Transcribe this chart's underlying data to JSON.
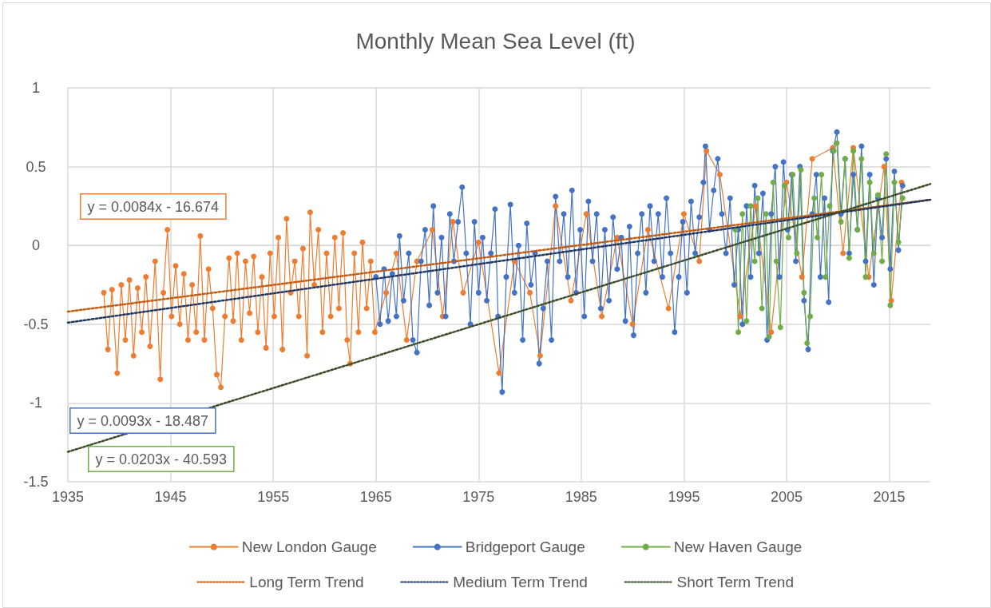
{
  "chart_data": {
    "type": "line",
    "title": "Monthly Mean Sea Level (ft)",
    "xlim": [
      1935,
      2019
    ],
    "xticks": [
      1935,
      1945,
      1955,
      1965,
      1975,
      1985,
      1995,
      2005,
      2015
    ],
    "ylim": [
      -1.5,
      1
    ],
    "yticks": [
      -1.5,
      -1,
      -0.5,
      0,
      0.5,
      1
    ],
    "grid": true,
    "legend": "bottom",
    "annotations": [
      "y = 0.0084x - 16.674",
      "y = 0.0093x - 18.487",
      "y = 0.0203x - 40.593"
    ],
    "series": [
      {
        "name": "New London Gauge",
        "color": "#ed7d31",
        "marker": "circle",
        "x": [
          1938.5,
          1938.9,
          1939.3,
          1939.8,
          1940.2,
          1940.6,
          1941.0,
          1941.4,
          1941.8,
          1942.2,
          1942.6,
          1943.0,
          1943.5,
          1944.0,
          1944.3,
          1944.7,
          1945.1,
          1945.5,
          1945.9,
          1946.3,
          1946.7,
          1947.1,
          1947.5,
          1947.9,
          1948.3,
          1948.7,
          1949.1,
          1949.5,
          1949.9,
          1950.3,
          1950.7,
          1951.1,
          1951.5,
          1951.9,
          1952.3,
          1952.7,
          1953.1,
          1953.5,
          1953.9,
          1954.3,
          1954.7,
          1955.1,
          1955.5,
          1955.9,
          1956.3,
          1956.7,
          1957.1,
          1957.5,
          1957.9,
          1958.3,
          1958.6,
          1959.0,
          1959.4,
          1959.8,
          1960.2,
          1960.6,
          1961.0,
          1961.4,
          1961.8,
          1962.2,
          1962.5,
          1962.9,
          1963.3,
          1963.7,
          1964.1,
          1964.5,
          1964.9,
          1966,
          1967,
          1968,
          1969,
          1970.5,
          1971.5,
          1972.5,
          1973.5,
          1975,
          1977,
          1978.5,
          1980,
          1981,
          1982.5,
          1984,
          1985.5,
          1987,
          1988.5,
          1990,
          1991.5,
          1993.5,
          1995,
          1996.5,
          1997.2,
          1998.5,
          2000.5,
          2002,
          2003.5,
          2005,
          2006.5,
          2007.5,
          2009.5,
          2010.5,
          2011.5,
          2013,
          2014.5,
          2015.2,
          2016.2
        ],
        "values": [
          -0.3,
          -0.66,
          -0.28,
          -0.81,
          -0.25,
          -0.6,
          -0.22,
          -0.7,
          -0.27,
          -0.55,
          -0.2,
          -0.64,
          -0.1,
          -0.85,
          -0.3,
          0.1,
          -0.45,
          -0.13,
          -0.5,
          -0.18,
          -0.6,
          -0.25,
          -0.55,
          0.06,
          -0.6,
          -0.15,
          -0.4,
          -0.82,
          -0.9,
          -0.45,
          -0.08,
          -0.48,
          -0.05,
          -0.6,
          -0.1,
          -0.43,
          -0.07,
          -0.55,
          -0.2,
          -0.65,
          -0.05,
          -0.45,
          0.05,
          -0.66,
          0.17,
          -0.3,
          -0.1,
          -0.45,
          -0.02,
          -0.7,
          0.21,
          -0.25,
          0.1,
          -0.55,
          -0.05,
          -0.45,
          0.05,
          -0.4,
          0.08,
          -0.6,
          -0.75,
          -0.05,
          -0.55,
          0.02,
          -0.4,
          -0.1,
          -0.55,
          -0.3,
          -0.05,
          -0.6,
          -0.1,
          0.1,
          -0.45,
          0.15,
          -0.3,
          0.02,
          -0.81,
          -0.1,
          -0.3,
          -0.7,
          0.25,
          -0.35,
          0.2,
          -0.45,
          0.05,
          -0.5,
          0.1,
          -0.4,
          0.2,
          -0.1,
          0.6,
          0.45,
          -0.45,
          0.25,
          -0.55,
          0.4,
          -0.2,
          0.55,
          0.62,
          -0.05,
          0.62,
          -0.2,
          0.5,
          -0.35,
          0.4
        ]
      },
      {
        "name": "Bridgeport Gauge",
        "color": "#4472c4",
        "marker": "circle",
        "x": [
          1965.0,
          1965.4,
          1965.8,
          1966.2,
          1966.6,
          1967.0,
          1967.3,
          1967.7,
          1968.2,
          1968.6,
          1969.0,
          1969.4,
          1969.8,
          1970.2,
          1970.6,
          1971.0,
          1971.4,
          1971.8,
          1972.2,
          1972.6,
          1973.0,
          1973.4,
          1973.8,
          1974.2,
          1974.6,
          1975.0,
          1975.4,
          1975.8,
          1976.2,
          1976.6,
          1976.9,
          1977.3,
          1977.7,
          1978.1,
          1978.5,
          1978.9,
          1979.3,
          1979.7,
          1980.1,
          1980.5,
          1980.9,
          1981.3,
          1981.7,
          1982.1,
          1982.5,
          1982.9,
          1983.3,
          1983.7,
          1984.1,
          1984.5,
          1984.9,
          1985.3,
          1985.7,
          1986.1,
          1986.5,
          1986.9,
          1987.3,
          1987.7,
          1988.1,
          1988.5,
          1988.9,
          1989.3,
          1989.7,
          1990.1,
          1990.5,
          1990.9,
          1991.3,
          1991.7,
          1992.1,
          1992.5,
          1992.9,
          1993.3,
          1993.7,
          1994.1,
          1994.5,
          1994.9,
          1995.3,
          1995.7,
          1996.1,
          1996.5,
          1996.9,
          1997.1,
          1997.5,
          1997.9,
          1998.3,
          1998.7,
          1999.1,
          1999.5,
          1999.9,
          2000.3,
          2000.7,
          2001.1,
          2001.5,
          2001.9,
          2002.3,
          2002.7,
          2003.1,
          2003.5,
          2003.9,
          2004.3,
          2004.7,
          2005.1,
          2005.5,
          2005.9,
          2006.3,
          2006.7,
          2007.1,
          2007.5,
          2007.9,
          2008.3,
          2008.7,
          2009.1,
          2009.5,
          2009.9,
          2010.3,
          2010.7,
          2011.1,
          2011.5,
          2011.9,
          2012.3,
          2012.7,
          2013.1,
          2013.5,
          2013.9,
          2014.3,
          2014.7,
          2015.1,
          2015.5,
          2015.9,
          2016.3
        ],
        "values": [
          -0.2,
          -0.5,
          -0.15,
          -0.48,
          -0.18,
          -0.45,
          0.06,
          -0.35,
          -0.05,
          -0.6,
          -0.68,
          -0.1,
          0.1,
          -0.38,
          0.25,
          -0.3,
          0.05,
          -0.45,
          0.2,
          -0.1,
          0.15,
          0.37,
          -0.05,
          -0.5,
          0.15,
          -0.3,
          0.05,
          -0.35,
          -0.05,
          0.23,
          -0.45,
          -0.93,
          -0.2,
          0.26,
          -0.3,
          0.0,
          -0.6,
          0.14,
          -0.25,
          -0.05,
          -0.75,
          -0.4,
          -0.1,
          -0.6,
          0.31,
          -0.1,
          0.2,
          -0.2,
          0.35,
          -0.3,
          0.1,
          -0.45,
          0.28,
          -0.1,
          0.2,
          -0.4,
          0.1,
          -0.35,
          0.18,
          -0.15,
          0.05,
          -0.48,
          0.12,
          -0.57,
          -0.05,
          0.2,
          -0.3,
          0.25,
          -0.1,
          0.2,
          -0.2,
          0.3,
          -0.05,
          -0.55,
          -0.2,
          0.15,
          -0.3,
          0.28,
          -0.05,
          0.18,
          0.4,
          0.63,
          0.1,
          0.35,
          0.55,
          0.2,
          -0.05,
          0.3,
          -0.25,
          0.1,
          -0.5,
          0.25,
          -0.2,
          0.38,
          -0.05,
          0.33,
          -0.6,
          0.2,
          0.5,
          -0.2,
          0.53,
          0.1,
          0.45,
          -0.1,
          0.5,
          -0.35,
          -0.66,
          0.2,
          0.45,
          -0.2,
          0.3,
          -0.36,
          0.6,
          0.72,
          0.2,
          0.55,
          -0.05,
          0.45,
          0.1,
          0.63,
          -0.1,
          0.45,
          -0.25,
          0.3,
          0.05,
          0.55,
          -0.15,
          0.47,
          -0.03,
          0.38
        ]
      },
      {
        "name": "New Haven Gauge",
        "color": "#70ad47",
        "marker": "circle",
        "x": [
          2000.0,
          2000.3,
          2000.7,
          2001.1,
          2001.5,
          2001.9,
          2002.2,
          2002.6,
          2003.0,
          2003.3,
          2003.7,
          2004.0,
          2004.4,
          2004.8,
          2005.2,
          2005.6,
          2006.0,
          2006.4,
          2006.7,
          2007.0,
          2007.3,
          2007.7,
          2008.0,
          2008.4,
          2008.8,
          2009.2,
          2009.6,
          2009.9,
          2010.3,
          2010.7,
          2011.1,
          2011.5,
          2011.9,
          2012.3,
          2012.7,
          2013.1,
          2013.5,
          2013.9,
          2014.3,
          2014.7,
          2015.1,
          2015.5,
          2015.9,
          2016.3
        ],
        "values": [
          0.1,
          -0.55,
          0.2,
          -0.48,
          0.25,
          -0.1,
          0.3,
          -0.4,
          0.2,
          -0.58,
          0.4,
          -0.1,
          -0.52,
          0.38,
          0.05,
          0.45,
          -0.05,
          0.48,
          -0.3,
          -0.62,
          -0.45,
          0.3,
          0.05,
          0.45,
          -0.2,
          0.25,
          0.6,
          0.65,
          0.15,
          0.55,
          -0.08,
          0.6,
          0.1,
          0.55,
          -0.2,
          0.4,
          -0.05,
          0.32,
          -0.1,
          0.58,
          -0.38,
          0.4,
          0.02,
          0.3
        ]
      },
      {
        "name": "Long Term Trend",
        "color": "#c55a11",
        "marker": "none",
        "line_style": "dotted",
        "x": [
          1935,
          2019
        ],
        "values": [
          -0.42,
          0.29
        ]
      },
      {
        "name": "Medium Term Trend",
        "color": "#203864",
        "marker": "none",
        "line_style": "dotted",
        "x": [
          1935,
          2019
        ],
        "values": [
          -0.49,
          0.29
        ]
      },
      {
        "name": "Short Term Trend",
        "color": "#3b4f2c",
        "marker": "none",
        "line_style": "dotted",
        "x": [
          1935,
          2019
        ],
        "values": [
          -1.31,
          0.39
        ]
      }
    ]
  }
}
